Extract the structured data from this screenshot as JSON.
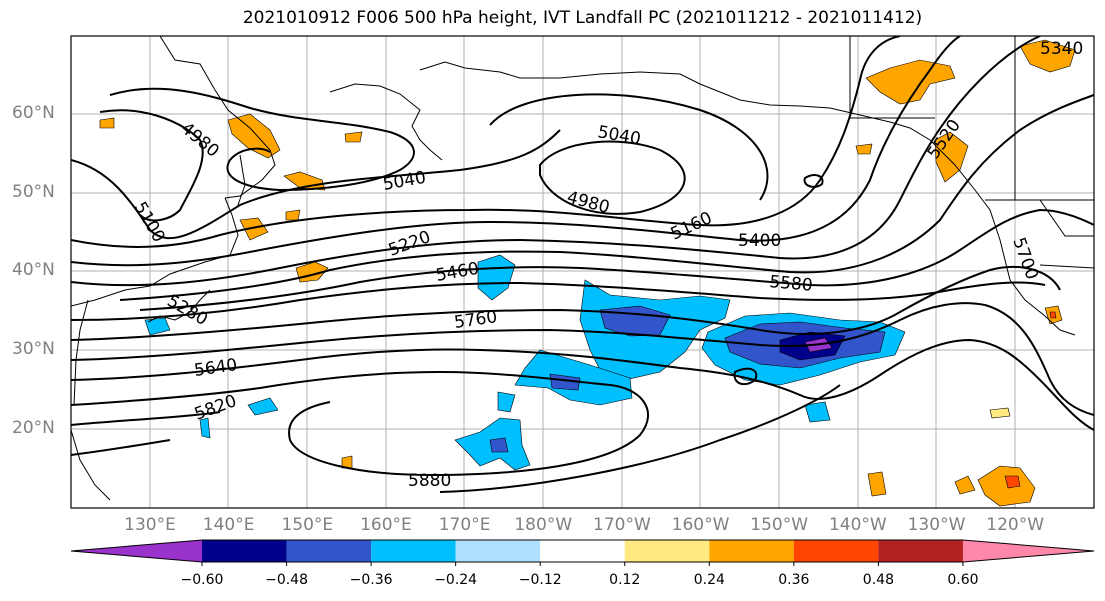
{
  "title": "2021010912 F006 500 hPa height, IVT Landfall PC (2021011212 - 2021011412)",
  "lat_labels": [
    {
      "text": "60°N",
      "lat": 60
    },
    {
      "text": "50°N",
      "lat": 50
    },
    {
      "text": "40°N",
      "lat": 40
    },
    {
      "text": "30°N",
      "lat": 30
    },
    {
      "text": "20°N",
      "lat": 20
    }
  ],
  "lon_labels": [
    {
      "text": "130°E",
      "lon": 130
    },
    {
      "text": "140°E",
      "lon": 140
    },
    {
      "text": "150°E",
      "lon": 150
    },
    {
      "text": "160°E",
      "lon": 160
    },
    {
      "text": "170°E",
      "lon": 170
    },
    {
      "text": "180°W",
      "lon": 180
    },
    {
      "text": "170°W",
      "lon": 190
    },
    {
      "text": "160°W",
      "lon": 200
    },
    {
      "text": "150°W",
      "lon": 210
    },
    {
      "text": "140°W",
      "lon": 220
    },
    {
      "text": "130°W",
      "lon": 230
    },
    {
      "text": "120°W",
      "lon": 240
    }
  ],
  "contour_labels": [
    "4980",
    "5040",
    "5040",
    "4980",
    "5100",
    "5220",
    "5160",
    "5400",
    "5460",
    "5580",
    "5280",
    "5760",
    "5700",
    "5640",
    "5820",
    "5880",
    "5520",
    "5340"
  ],
  "colorbar": {
    "colors": [
      "#9933cc",
      "#00008b",
      "#3355cc",
      "#00bfff",
      "#b0e0ff",
      "#ffffff",
      "#ffe980",
      "#ffa500",
      "#ff4500",
      "#b22222",
      "#ff88aa"
    ],
    "tick_labels": [
      "−0.60",
      "−0.48",
      "−0.36",
      "−0.24",
      "−0.12",
      "0.12",
      "0.24",
      "0.36",
      "0.48",
      "0.60"
    ]
  }
}
